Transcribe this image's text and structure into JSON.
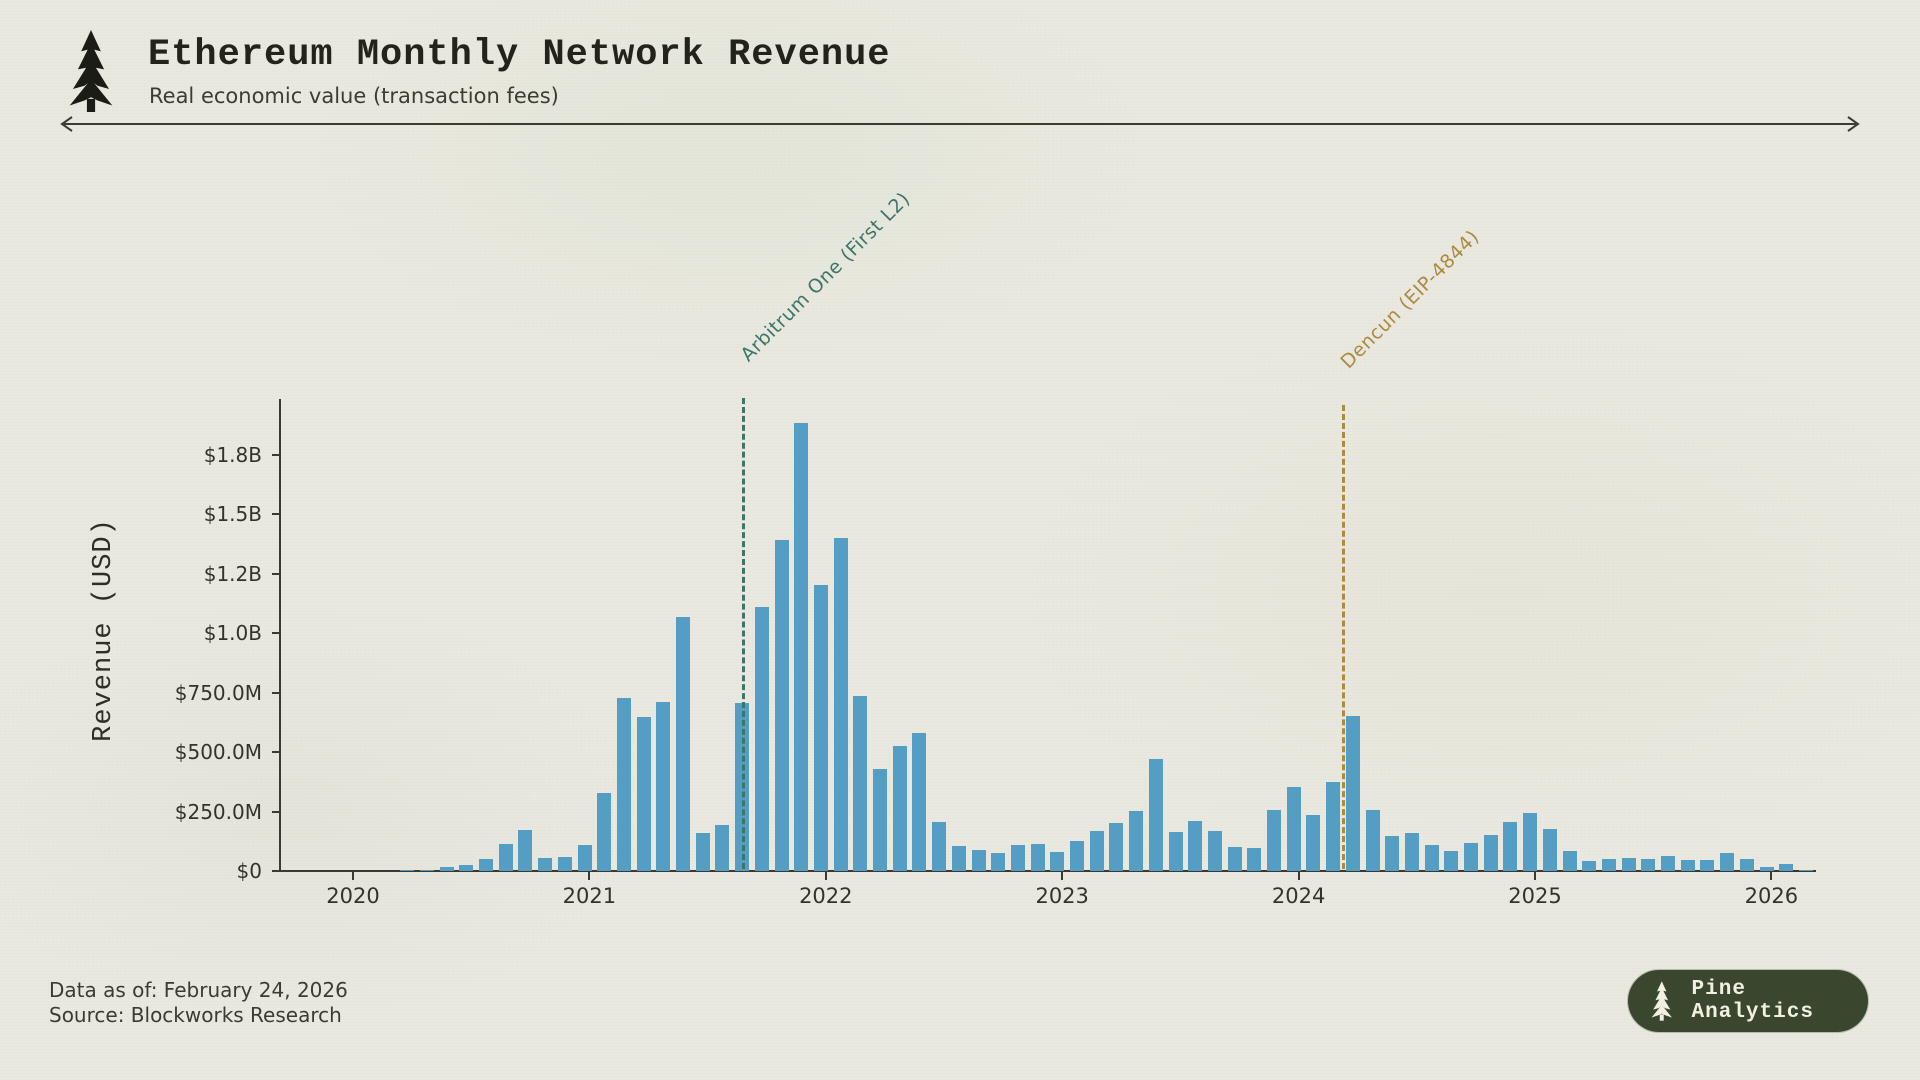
{
  "header": {
    "title": "Ethereum Monthly Network Revenue",
    "subtitle": "Real economic value (transaction fees)"
  },
  "chart_data": {
    "type": "bar",
    "title": "Ethereum Monthly Network Revenue",
    "xlabel": "",
    "ylabel": "Revenue (USD)",
    "unit": "USD millions",
    "ylim": [
      0,
      1980
    ],
    "grid": false,
    "bar_color": "#559ec3",
    "x": [
      "2020-01",
      "2020-02",
      "2020-03",
      "2020-04",
      "2020-05",
      "2020-06",
      "2020-07",
      "2020-08",
      "2020-09",
      "2020-10",
      "2020-11",
      "2020-12",
      "2021-01",
      "2021-02",
      "2021-03",
      "2021-04",
      "2021-05",
      "2021-06",
      "2021-07",
      "2021-08",
      "2021-09",
      "2021-10",
      "2021-11",
      "2021-12",
      "2022-01",
      "2022-02",
      "2022-03",
      "2022-04",
      "2022-05",
      "2022-06",
      "2022-07",
      "2022-08",
      "2022-09",
      "2022-10",
      "2022-11",
      "2022-12",
      "2023-01",
      "2023-02",
      "2023-03",
      "2023-04",
      "2023-05",
      "2023-06",
      "2023-07",
      "2023-08",
      "2023-09",
      "2023-10",
      "2023-11",
      "2023-12",
      "2024-01",
      "2024-02",
      "2024-03",
      "2024-04",
      "2024-05",
      "2024-06",
      "2024-07",
      "2024-08",
      "2024-09",
      "2024-10",
      "2024-11",
      "2024-12",
      "2025-01",
      "2025-02",
      "2025-03",
      "2025-04",
      "2025-05",
      "2025-06",
      "2025-07",
      "2025-08",
      "2025-09",
      "2025-10",
      "2025-11",
      "2025-12",
      "2026-01",
      "2026-02"
    ],
    "values": [
      0,
      0,
      5,
      2,
      15,
      25,
      49,
      113,
      171,
      56,
      60,
      108,
      326,
      725,
      645,
      708,
      1069,
      160,
      195,
      705,
      1108,
      1391,
      1883,
      1200,
      1400,
      735,
      427,
      525,
      578,
      207,
      105,
      88,
      74,
      109,
      113,
      81,
      126,
      169,
      200,
      252,
      469,
      162,
      209,
      169,
      102,
      98,
      258,
      353,
      235,
      373,
      651,
      256,
      146,
      161,
      109,
      84,
      116,
      150,
      207,
      242,
      175,
      85,
      43,
      49,
      56,
      52,
      62,
      46,
      45,
      74,
      50,
      15,
      29,
      2
    ],
    "y_ticks": [
      {
        "label": "$0",
        "value": 0
      },
      {
        "label": "$250.0M",
        "value": 250
      },
      {
        "label": "$500.0M",
        "value": 500
      },
      {
        "label": "$750.0M",
        "value": 750
      },
      {
        "label": "$1.0B",
        "value": 1000
      },
      {
        "label": "$1.2B",
        "value": 1250
      },
      {
        "label": "$1.5B",
        "value": 1500
      },
      {
        "label": "$1.8B",
        "value": 1750
      }
    ],
    "x_ticks": [
      {
        "label": "2020"
      },
      {
        "label": "2021"
      },
      {
        "label": "2022"
      },
      {
        "label": "2023"
      },
      {
        "label": "2024"
      },
      {
        "label": "2025"
      },
      {
        "label": "2026"
      }
    ],
    "annotations": [
      {
        "label": "Arbitrum One (First L2)",
        "month": "2021-08",
        "color": "#3e7568"
      },
      {
        "label": "Dencun (EIP-4844)",
        "month": "2024-03",
        "color": "#ab8a41"
      }
    ]
  },
  "footer": {
    "data_as_of": "Data as of: February 24, 2026",
    "source": "Source: Blockworks Research"
  },
  "badge": {
    "text": "Pine Analytics"
  }
}
